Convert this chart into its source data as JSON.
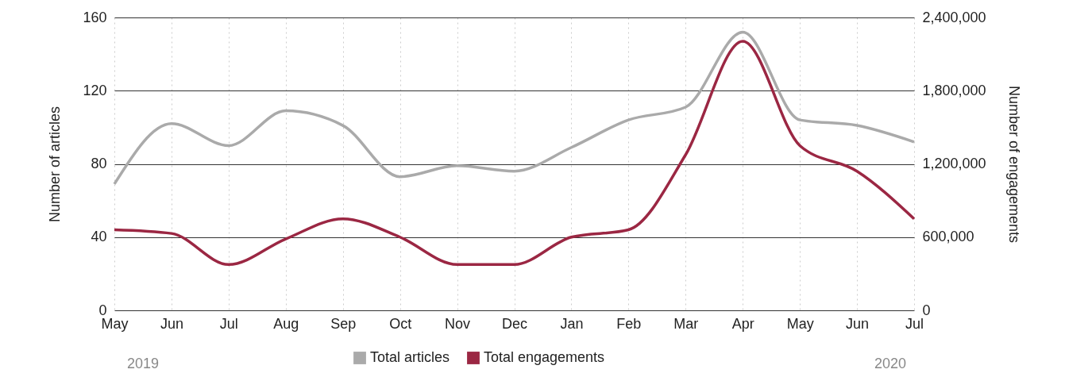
{
  "chart_data": {
    "type": "line",
    "ylabel": "Number of articles",
    "y2label": "Number of engagements",
    "categories": [
      "May",
      "Jun",
      "Jul",
      "Aug",
      "Sep",
      "Oct",
      "Nov",
      "Dec",
      "Jan",
      "Feb",
      "Mar",
      "Apr",
      "May",
      "Jun",
      "Jul"
    ],
    "series": [
      {
        "name": "Total articles",
        "color": "#aaaaaa",
        "values": [
          69,
          102,
          90,
          109,
          101,
          73,
          79,
          76,
          89,
          104,
          111,
          152,
          104,
          101,
          92
        ]
      },
      {
        "name": "Total engagements",
        "color": "#9b2743",
        "axis": "y2",
        "values": [
          660000,
          630000,
          375000,
          585000,
          750000,
          600000,
          375000,
          375000,
          600000,
          660000,
          1275000,
          2205000,
          1350000,
          1140000,
          750000
        ]
      }
    ],
    "ylim": [
      0,
      160
    ],
    "yticks": [
      0,
      40,
      80,
      120,
      160
    ],
    "y2lim": [
      0,
      2400000
    ],
    "y2ticks": [
      0,
      {
        "value": 600000,
        "label": "600,000"
      },
      {
        "value": 1200000,
        "label": "1,200,000"
      },
      {
        "value": 1800000,
        "label": "1,800,000"
      },
      {
        "value": 2400000,
        "label": "2,400,000"
      }
    ],
    "grid": true,
    "legend": "bottom",
    "marker": "none",
    "line_style": "solid",
    "annotations": [
      "2019",
      "2020"
    ]
  }
}
